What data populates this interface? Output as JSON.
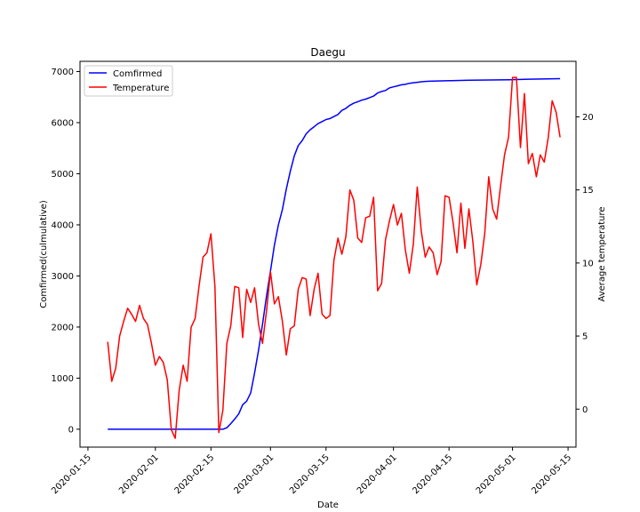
{
  "chart_data": {
    "type": "line",
    "title": "Daegu",
    "xlabel": "Date",
    "ylabel_left": "Comfirmed(culmulative)",
    "ylabel_right": "Average temperature",
    "x_ticks": [
      "2020-01-15",
      "2020-02-01",
      "2020-02-15",
      "2020-03-01",
      "2020-03-15",
      "2020-04-01",
      "2020-04-15",
      "2020-05-01",
      "2020-05-15"
    ],
    "y_left_ticks": [
      0,
      1000,
      2000,
      3000,
      4000,
      5000,
      6000,
      7000
    ],
    "y_right_ticks": [
      0,
      5,
      10,
      15,
      20
    ],
    "xlim": [
      "2020-01-13",
      "2020-05-17"
    ],
    "ylim_left": [
      -350,
      7200
    ],
    "ylim_right": [
      -2.6,
      23.8
    ],
    "legend": {
      "position": "top-left",
      "entries": [
        "Comfirmed",
        "Temperature"
      ]
    },
    "grid": false,
    "colors": {
      "confirmed": "#0000ff",
      "temperature": "#ff0000"
    },
    "series": [
      {
        "name": "Comfirmed",
        "axis": "left",
        "points": [
          [
            "2020-01-20",
            0
          ],
          [
            "2020-02-18",
            0
          ],
          [
            "2020-02-19",
            30
          ],
          [
            "2020-02-20",
            110
          ],
          [
            "2020-02-21",
            200
          ],
          [
            "2020-02-22",
            300
          ],
          [
            "2020-02-23",
            480
          ],
          [
            "2020-02-24",
            550
          ],
          [
            "2020-02-25",
            710
          ],
          [
            "2020-02-26",
            1100
          ],
          [
            "2020-02-27",
            1550
          ],
          [
            "2020-02-28",
            2050
          ],
          [
            "2020-02-29",
            2600
          ],
          [
            "2020-03-01",
            3100
          ],
          [
            "2020-03-02",
            3600
          ],
          [
            "2020-03-03",
            4000
          ],
          [
            "2020-03-04",
            4300
          ],
          [
            "2020-03-05",
            4700
          ],
          [
            "2020-03-06",
            5050
          ],
          [
            "2020-03-07",
            5350
          ],
          [
            "2020-03-08",
            5550
          ],
          [
            "2020-03-09",
            5650
          ],
          [
            "2020-03-10",
            5780
          ],
          [
            "2020-03-11",
            5860
          ],
          [
            "2020-03-12",
            5920
          ],
          [
            "2020-03-13",
            5980
          ],
          [
            "2020-03-14",
            6020
          ],
          [
            "2020-03-15",
            6060
          ],
          [
            "2020-03-16",
            6080
          ],
          [
            "2020-03-17",
            6120
          ],
          [
            "2020-03-18",
            6160
          ],
          [
            "2020-03-19",
            6240
          ],
          [
            "2020-03-20",
            6280
          ],
          [
            "2020-03-21",
            6340
          ],
          [
            "2020-03-22",
            6380
          ],
          [
            "2020-03-23",
            6410
          ],
          [
            "2020-03-24",
            6440
          ],
          [
            "2020-03-25",
            6460
          ],
          [
            "2020-03-26",
            6490
          ],
          [
            "2020-03-27",
            6520
          ],
          [
            "2020-03-28",
            6580
          ],
          [
            "2020-03-29",
            6610
          ],
          [
            "2020-03-30",
            6630
          ],
          [
            "2020-03-31",
            6680
          ],
          [
            "2020-04-01",
            6700
          ],
          [
            "2020-04-02",
            6720
          ],
          [
            "2020-04-03",
            6740
          ],
          [
            "2020-04-04",
            6750
          ],
          [
            "2020-04-05",
            6770
          ],
          [
            "2020-04-06",
            6780
          ],
          [
            "2020-04-07",
            6790
          ],
          [
            "2020-04-08",
            6800
          ],
          [
            "2020-04-09",
            6807
          ],
          [
            "2020-04-10",
            6810
          ],
          [
            "2020-04-11",
            6812
          ],
          [
            "2020-04-15",
            6820
          ],
          [
            "2020-04-20",
            6830
          ],
          [
            "2020-04-25",
            6835
          ],
          [
            "2020-04-30",
            6840
          ],
          [
            "2020-05-05",
            6850
          ],
          [
            "2020-05-13",
            6860
          ]
        ]
      },
      {
        "name": "Temperature",
        "axis": "right",
        "points": [
          [
            "2020-01-20",
            4.6
          ],
          [
            "2020-01-21",
            1.9
          ],
          [
            "2020-01-22",
            2.8
          ],
          [
            "2020-01-23",
            5.0
          ],
          [
            "2020-01-24",
            6.0
          ],
          [
            "2020-01-25",
            6.9
          ],
          [
            "2020-01-26",
            6.5
          ],
          [
            "2020-01-27",
            6.0
          ],
          [
            "2020-01-28",
            7.1
          ],
          [
            "2020-01-29",
            6.2
          ],
          [
            "2020-01-30",
            5.8
          ],
          [
            "2020-01-31",
            4.5
          ],
          [
            "2020-02-01",
            3.0
          ],
          [
            "2020-02-02",
            3.6
          ],
          [
            "2020-02-03",
            3.2
          ],
          [
            "2020-02-04",
            2.0
          ],
          [
            "2020-02-05",
            -1.4
          ],
          [
            "2020-02-06",
            -2.0
          ],
          [
            "2020-02-07",
            1.3
          ],
          [
            "2020-02-08",
            3.0
          ],
          [
            "2020-02-09",
            1.9
          ],
          [
            "2020-02-10",
            5.6
          ],
          [
            "2020-02-11",
            6.2
          ],
          [
            "2020-02-12",
            8.4
          ],
          [
            "2020-02-13",
            10.4
          ],
          [
            "2020-02-14",
            10.7
          ],
          [
            "2020-02-15",
            12.0
          ],
          [
            "2020-02-16",
            8.4
          ],
          [
            "2020-02-17",
            -1.6
          ],
          [
            "2020-02-18",
            -0.1
          ],
          [
            "2020-02-19",
            4.5
          ],
          [
            "2020-02-20",
            5.7
          ],
          [
            "2020-02-21",
            8.4
          ],
          [
            "2020-02-22",
            8.3
          ],
          [
            "2020-02-23",
            4.9
          ],
          [
            "2020-02-24",
            8.2
          ],
          [
            "2020-02-25",
            7.3
          ],
          [
            "2020-02-26",
            8.3
          ],
          [
            "2020-02-27",
            5.8
          ],
          [
            "2020-02-28",
            4.5
          ],
          [
            "2020-02-29",
            6.7
          ],
          [
            "2020-03-01",
            9.4
          ],
          [
            "2020-03-02",
            7.2
          ],
          [
            "2020-03-03",
            7.7
          ],
          [
            "2020-03-04",
            6.0
          ],
          [
            "2020-03-05",
            3.7
          ],
          [
            "2020-03-06",
            5.5
          ],
          [
            "2020-03-07",
            5.7
          ],
          [
            "2020-03-08",
            8.2
          ],
          [
            "2020-03-09",
            9.0
          ],
          [
            "2020-03-10",
            8.9
          ],
          [
            "2020-03-11",
            6.4
          ],
          [
            "2020-03-12",
            8.2
          ],
          [
            "2020-03-13",
            9.3
          ],
          [
            "2020-03-14",
            6.5
          ],
          [
            "2020-03-15",
            6.2
          ],
          [
            "2020-03-16",
            6.4
          ],
          [
            "2020-03-17",
            10.2
          ],
          [
            "2020-03-18",
            11.7
          ],
          [
            "2020-03-19",
            10.6
          ],
          [
            "2020-03-20",
            11.8
          ],
          [
            "2020-03-21",
            15.0
          ],
          [
            "2020-03-22",
            14.3
          ],
          [
            "2020-03-23",
            11.7
          ],
          [
            "2020-03-24",
            11.4
          ],
          [
            "2020-03-25",
            13.1
          ],
          [
            "2020-03-26",
            13.2
          ],
          [
            "2020-03-27",
            14.5
          ],
          [
            "2020-03-28",
            8.1
          ],
          [
            "2020-03-29",
            8.6
          ],
          [
            "2020-03-30",
            11.6
          ],
          [
            "2020-03-31",
            12.9
          ],
          [
            "2020-04-01",
            14.0
          ],
          [
            "2020-04-02",
            12.6
          ],
          [
            "2020-04-03",
            13.4
          ],
          [
            "2020-04-04",
            10.9
          ],
          [
            "2020-04-05",
            9.3
          ],
          [
            "2020-04-06",
            11.3
          ],
          [
            "2020-04-07",
            15.2
          ],
          [
            "2020-04-08",
            12.2
          ],
          [
            "2020-04-09",
            10.4
          ],
          [
            "2020-04-10",
            11.1
          ],
          [
            "2020-04-11",
            10.7
          ],
          [
            "2020-04-12",
            9.2
          ],
          [
            "2020-04-13",
            10.1
          ],
          [
            "2020-04-14",
            14.6
          ],
          [
            "2020-04-15",
            14.5
          ],
          [
            "2020-04-16",
            12.8
          ],
          [
            "2020-04-17",
            10.7
          ],
          [
            "2020-04-18",
            14.1
          ],
          [
            "2020-04-19",
            11.0
          ],
          [
            "2020-04-20",
            13.7
          ],
          [
            "2020-04-21",
            11.5
          ],
          [
            "2020-04-22",
            8.5
          ],
          [
            "2020-04-23",
            9.9
          ],
          [
            "2020-04-24",
            12.0
          ],
          [
            "2020-04-25",
            15.9
          ],
          [
            "2020-04-26",
            13.7
          ],
          [
            "2020-04-27",
            13.0
          ],
          [
            "2020-04-28",
            15.3
          ],
          [
            "2020-04-29",
            17.4
          ],
          [
            "2020-04-30",
            18.6
          ],
          [
            "2020-05-01",
            22.7
          ],
          [
            "2020-05-02",
            22.7
          ],
          [
            "2020-05-03",
            17.9
          ],
          [
            "2020-05-04",
            21.6
          ],
          [
            "2020-05-05",
            16.8
          ],
          [
            "2020-05-06",
            17.5
          ],
          [
            "2020-05-07",
            15.9
          ],
          [
            "2020-05-08",
            17.4
          ],
          [
            "2020-05-09",
            16.9
          ],
          [
            "2020-05-10",
            18.6
          ],
          [
            "2020-05-11",
            21.1
          ],
          [
            "2020-05-12",
            20.3
          ],
          [
            "2020-05-13",
            18.6
          ]
        ]
      }
    ]
  }
}
